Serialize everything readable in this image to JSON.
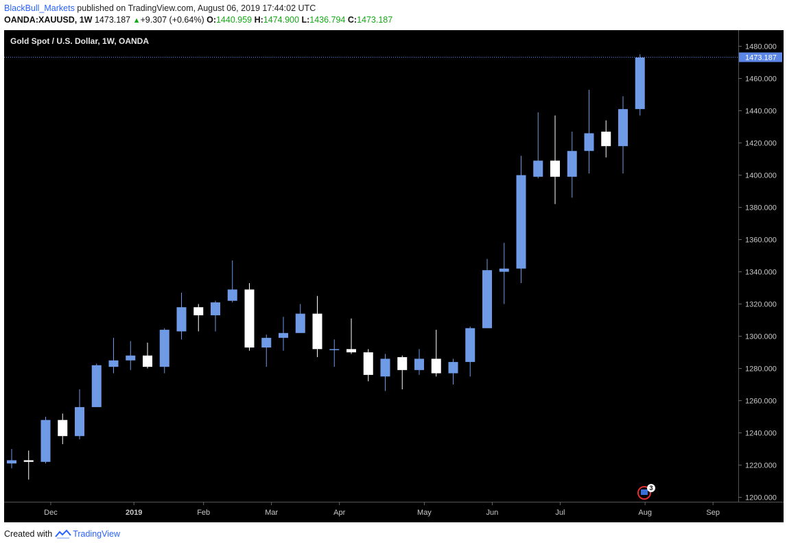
{
  "header": {
    "author": "BlackBull_Markets",
    "published_text": " published on TradingView.com, August 06, 2019 17:44:02 UTC",
    "symbol": "OANDA:XAUUSD, 1W",
    "last": "1473.187",
    "change": "+9.307 (+0.64%)",
    "o_label": "O:",
    "o_value": "1440.959",
    "h_label": "H:",
    "h_value": "1474.900",
    "l_label": "L:",
    "l_value": "1436.794",
    "c_label": "C:",
    "c_value": "1473.187"
  },
  "footer": {
    "created_with": "Created with",
    "brand": "TradingView"
  },
  "colors": {
    "background": "#000000",
    "up": "#6f9ae6",
    "down": "#ffffff",
    "price_line": "#5b86e5",
    "axis_text": "#c8c8c8"
  },
  "chart_data": {
    "type": "candlestick",
    "title": "Gold Spot / U.S. Dollar, 1W, OANDA",
    "interval": "1W",
    "ylim": [
      1200,
      1480
    ],
    "y_ticks": [
      1200,
      1220,
      1240,
      1260,
      1280,
      1300,
      1320,
      1340,
      1360,
      1380,
      1400,
      1420,
      1440,
      1460,
      1480
    ],
    "y_tick_labels": [
      "1200.000",
      "1220.000",
      "1240.000",
      "1260.000",
      "1280.000",
      "1300.000",
      "1320.000",
      "1340.000",
      "1360.000",
      "1380.000",
      "1400.000",
      "1420.000",
      "1440.000",
      "1460.000",
      "1480.000"
    ],
    "x_labels": [
      {
        "label": "Dec",
        "week": 2.3
      },
      {
        "label": "2019",
        "week": 7.2
      },
      {
        "label": "Feb",
        "week": 11.3
      },
      {
        "label": "Mar",
        "week": 15.3
      },
      {
        "label": "Apr",
        "week": 19.3
      },
      {
        "label": "May",
        "week": 24.3
      },
      {
        "label": "Jun",
        "week": 28.3
      },
      {
        "label": "Jul",
        "week": 32.3
      },
      {
        "label": "Aug",
        "week": 37.3
      },
      {
        "label": "Sep",
        "week": 41.3
      }
    ],
    "last_price": 1473.187,
    "last_price_label": "1473.187",
    "event_badge": "3",
    "candles": [
      {
        "date": "2018-11-12",
        "open": 1221,
        "high": 1230,
        "low": 1218,
        "close": 1223
      },
      {
        "date": "2018-11-19",
        "open": 1223,
        "high": 1229,
        "low": 1211,
        "close": 1222
      },
      {
        "date": "2018-11-26",
        "open": 1222,
        "high": 1250,
        "low": 1221,
        "close": 1248
      },
      {
        "date": "2018-12-03",
        "open": 1248,
        "high": 1252,
        "low": 1233,
        "close": 1238
      },
      {
        "date": "2018-12-10",
        "open": 1238,
        "high": 1267,
        "low": 1236,
        "close": 1256
      },
      {
        "date": "2018-12-17",
        "open": 1256,
        "high": 1283,
        "low": 1256,
        "close": 1282
      },
      {
        "date": "2018-12-24",
        "open": 1281,
        "high": 1299,
        "low": 1277,
        "close": 1285
      },
      {
        "date": "2018-12-31",
        "open": 1285,
        "high": 1297,
        "low": 1279,
        "close": 1288
      },
      {
        "date": "2019-01-07",
        "open": 1288,
        "high": 1296,
        "low": 1280,
        "close": 1281
      },
      {
        "date": "2019-01-14",
        "open": 1281,
        "high": 1305,
        "low": 1277,
        "close": 1304
      },
      {
        "date": "2019-01-21",
        "open": 1303,
        "high": 1327,
        "low": 1298,
        "close": 1318
      },
      {
        "date": "2019-01-28",
        "open": 1318,
        "high": 1320,
        "low": 1303,
        "close": 1313
      },
      {
        "date": "2019-02-04",
        "open": 1313,
        "high": 1322,
        "low": 1303,
        "close": 1321
      },
      {
        "date": "2019-02-11",
        "open": 1322,
        "high": 1347,
        "low": 1321,
        "close": 1329
      },
      {
        "date": "2019-02-18",
        "open": 1329,
        "high": 1333,
        "low": 1291,
        "close": 1293
      },
      {
        "date": "2019-02-25",
        "open": 1293,
        "high": 1301,
        "low": 1281,
        "close": 1299
      },
      {
        "date": "2019-03-04",
        "open": 1299,
        "high": 1312,
        "low": 1291,
        "close": 1302
      },
      {
        "date": "2019-03-11",
        "open": 1302,
        "high": 1320,
        "low": 1302,
        "close": 1314
      },
      {
        "date": "2019-03-18",
        "open": 1314,
        "high": 1325,
        "low": 1287,
        "close": 1292
      },
      {
        "date": "2019-03-25",
        "open": 1292,
        "high": 1298,
        "low": 1281,
        "close": 1292
      },
      {
        "date": "2019-04-01",
        "open": 1292,
        "high": 1311,
        "low": 1289,
        "close": 1290
      },
      {
        "date": "2019-04-08",
        "open": 1290,
        "high": 1292,
        "low": 1272,
        "close": 1276
      },
      {
        "date": "2019-04-15",
        "open": 1275,
        "high": 1289,
        "low": 1266,
        "close": 1286
      },
      {
        "date": "2019-04-22",
        "open": 1287,
        "high": 1288,
        "low": 1267,
        "close": 1279
      },
      {
        "date": "2019-04-29",
        "open": 1279,
        "high": 1292,
        "low": 1276,
        "close": 1286
      },
      {
        "date": "2019-05-06",
        "open": 1286,
        "high": 1304,
        "low": 1275,
        "close": 1277
      },
      {
        "date": "2019-05-13",
        "open": 1277,
        "high": 1286,
        "low": 1270,
        "close": 1284
      },
      {
        "date": "2019-05-20",
        "open": 1284,
        "high": 1306,
        "low": 1275,
        "close": 1305
      },
      {
        "date": "2019-05-27",
        "open": 1305,
        "high": 1348,
        "low": 1305,
        "close": 1341
      },
      {
        "date": "2019-06-03",
        "open": 1340,
        "high": 1358,
        "low": 1320,
        "close": 1342
      },
      {
        "date": "2019-06-10",
        "open": 1342,
        "high": 1412,
        "low": 1333,
        "close": 1400
      },
      {
        "date": "2019-06-17",
        "open": 1399,
        "high": 1439,
        "low": 1398,
        "close": 1409
      },
      {
        "date": "2019-06-24",
        "open": 1409,
        "high": 1437,
        "low": 1382,
        "close": 1399
      },
      {
        "date": "2019-07-01",
        "open": 1399,
        "high": 1427,
        "low": 1386,
        "close": 1415
      },
      {
        "date": "2019-07-08",
        "open": 1415,
        "high": 1453,
        "low": 1401,
        "close": 1426
      },
      {
        "date": "2019-07-15",
        "open": 1427,
        "high": 1434,
        "low": 1411,
        "close": 1418
      },
      {
        "date": "2019-07-22",
        "open": 1418,
        "high": 1449,
        "low": 1401,
        "close": 1441
      },
      {
        "date": "2019-07-29",
        "open": 1441,
        "high": 1475,
        "low": 1437,
        "close": 1473
      }
    ]
  }
}
